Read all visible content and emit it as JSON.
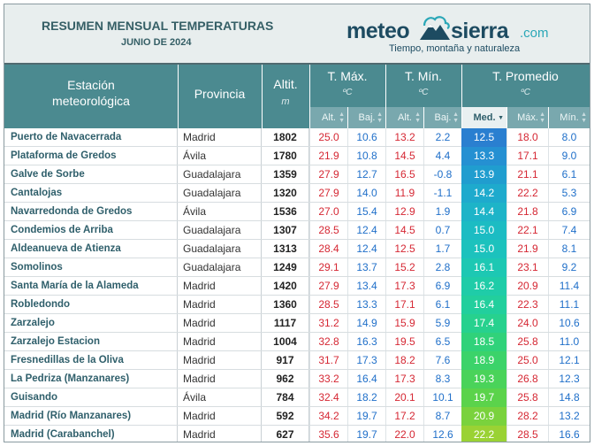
{
  "header": {
    "title": "RESUMEN MENSUAL TEMPERATURAS",
    "subtitle": "JUNIO DE 2024"
  },
  "logo": {
    "meteo": "meteo",
    "sierra": "sierra",
    "com": ".com",
    "tagline": "Tiempo, montaña y naturaleza",
    "colors": {
      "dark": "#1d4b61",
      "accent": "#2aa7b7"
    }
  },
  "table": {
    "col_station": "Estación\nmeteorológica",
    "col_province": "Provincia",
    "col_alt": "Altit.",
    "col_alt_unit": "m",
    "groups": [
      {
        "label": "T. Máx.",
        "unit": "ºC"
      },
      {
        "label": "T. Mín.",
        "unit": "ºC"
      },
      {
        "label": "T. Promedio",
        "unit": "ºC"
      }
    ],
    "subcols": [
      "Alt.",
      "Baj.",
      "Alt.",
      "Baj.",
      "Med.",
      "Máx.",
      "Mín."
    ],
    "sorted_subcol": "Med.",
    "rows": [
      {
        "station": "Puerto de Navacerrada",
        "province": "Madrid",
        "alt": "1802",
        "tmax_alt": "25.0",
        "tmax_baj": "10.6",
        "tmin_alt": "13.2",
        "tmin_baj": "2.2",
        "med": "12.5",
        "max": "18.0",
        "min": "8.0",
        "med_color": "#2a7fd0"
      },
      {
        "station": "Plataforma de Gredos",
        "province": "Ávila",
        "alt": "1780",
        "tmax_alt": "21.9",
        "tmax_baj": "10.8",
        "tmin_alt": "14.5",
        "tmin_baj": "4.4",
        "med": "13.3",
        "max": "17.1",
        "min": "9.0",
        "med_color": "#2590d2"
      },
      {
        "station": "Galve de Sorbe",
        "province": "Guadalajara",
        "alt": "1359",
        "tmax_alt": "27.9",
        "tmax_baj": "12.7",
        "tmin_alt": "16.5",
        "tmin_baj": "-0.8",
        "med": "13.9",
        "max": "21.1",
        "min": "6.1",
        "med_color": "#209dcf"
      },
      {
        "station": "Cantalojas",
        "province": "Guadalajara",
        "alt": "1320",
        "tmax_alt": "27.9",
        "tmax_baj": "14.0",
        "tmin_alt": "11.9",
        "tmin_baj": "-1.1",
        "med": "14.2",
        "max": "22.2",
        "min": "5.3",
        "med_color": "#1eaacd"
      },
      {
        "station": "Navarredonda de Gredos",
        "province": "Ávila",
        "alt": "1536",
        "tmax_alt": "27.0",
        "tmax_baj": "15.4",
        "tmin_alt": "12.9",
        "tmin_baj": "1.9",
        "med": "14.4",
        "max": "21.8",
        "min": "6.9",
        "med_color": "#1db4c8"
      },
      {
        "station": "Condemios de Arriba",
        "province": "Guadalajara",
        "alt": "1307",
        "tmax_alt": "28.5",
        "tmax_baj": "12.4",
        "tmin_alt": "14.5",
        "tmin_baj": "0.7",
        "med": "15.0",
        "max": "22.1",
        "min": "7.4",
        "med_color": "#1cbcc3"
      },
      {
        "station": "Aldeanueva de Atienza",
        "province": "Guadalajara",
        "alt": "1313",
        "tmax_alt": "28.4",
        "tmax_baj": "12.4",
        "tmin_alt": "12.5",
        "tmin_baj": "1.7",
        "med": "15.0",
        "max": "21.9",
        "min": "8.1",
        "med_color": "#1cc2bd"
      },
      {
        "station": "Somolinos",
        "province": "Guadalajara",
        "alt": "1249",
        "tmax_alt": "29.1",
        "tmax_baj": "13.7",
        "tmin_alt": "15.2",
        "tmin_baj": "2.8",
        "med": "16.1",
        "max": "23.1",
        "min": "9.2",
        "med_color": "#1dc8b3"
      },
      {
        "station": "Santa María de la Alameda",
        "province": "Madrid",
        "alt": "1420",
        "tmax_alt": "27.9",
        "tmax_baj": "13.4",
        "tmin_alt": "17.3",
        "tmin_baj": "6.9",
        "med": "16.2",
        "max": "20.9",
        "min": "11.4",
        "med_color": "#1fcca8"
      },
      {
        "station": "Robledondo",
        "province": "Madrid",
        "alt": "1360",
        "tmax_alt": "28.5",
        "tmax_baj": "13.3",
        "tmin_alt": "17.1",
        "tmin_baj": "6.1",
        "med": "16.4",
        "max": "22.3",
        "min": "11.1",
        "med_color": "#22cf9d"
      },
      {
        "station": "Zarzalejo",
        "province": "Madrid",
        "alt": "1117",
        "tmax_alt": "31.2",
        "tmax_baj": "14.9",
        "tmin_alt": "15.9",
        "tmin_baj": "5.9",
        "med": "17.4",
        "max": "24.0",
        "min": "10.6",
        "med_color": "#27d18e"
      },
      {
        "station": "Zarzalejo Estacion",
        "province": "Madrid",
        "alt": "1004",
        "tmax_alt": "32.8",
        "tmax_baj": "16.3",
        "tmin_alt": "19.5",
        "tmin_baj": "6.5",
        "med": "18.5",
        "max": "25.8",
        "min": "11.0",
        "med_color": "#30d27a"
      },
      {
        "station": "Fresnedillas de la Oliva",
        "province": "Madrid",
        "alt": "917",
        "tmax_alt": "31.7",
        "tmax_baj": "17.3",
        "tmin_alt": "18.2",
        "tmin_baj": "7.6",
        "med": "18.9",
        "max": "25.0",
        "min": "12.1",
        "med_color": "#3bd36a"
      },
      {
        "station": "La Pedriza (Manzanares)",
        "province": "Madrid",
        "alt": "962",
        "tmax_alt": "33.2",
        "tmax_baj": "16.4",
        "tmin_alt": "17.3",
        "tmin_baj": "8.3",
        "med": "19.3",
        "max": "26.8",
        "min": "12.3",
        "med_color": "#4ad35a"
      },
      {
        "station": "Guisando",
        "province": "Ávila",
        "alt": "784",
        "tmax_alt": "32.4",
        "tmax_baj": "18.2",
        "tmin_alt": "20.1",
        "tmin_baj": "10.1",
        "med": "19.7",
        "max": "25.8",
        "min": "14.8",
        "med_color": "#5bd34b"
      },
      {
        "station": "Madrid (Río Manzanares)",
        "province": "Madrid",
        "alt": "592",
        "tmax_alt": "34.2",
        "tmax_baj": "19.7",
        "tmin_alt": "17.2",
        "tmin_baj": "8.7",
        "med": "20.9",
        "max": "28.2",
        "min": "13.2",
        "med_color": "#7ad23d"
      },
      {
        "station": "Madrid (Carabanchel)",
        "province": "Madrid",
        "alt": "627",
        "tmax_alt": "35.6",
        "tmax_baj": "19.7",
        "tmin_alt": "22.0",
        "tmin_baj": "12.6",
        "med": "22.2",
        "max": "28.5",
        "min": "16.6",
        "med_color": "#9ad234"
      }
    ]
  }
}
